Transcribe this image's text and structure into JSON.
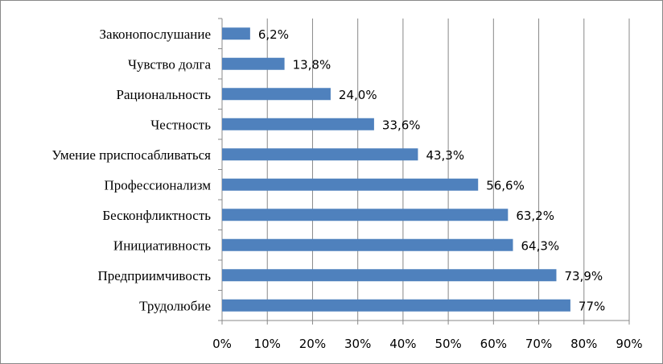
{
  "chart_data": {
    "type": "bar",
    "orientation": "horizontal",
    "title": "",
    "xlabel": "",
    "ylabel": "",
    "categories": [
      "Законопослушание",
      "Чувство долга",
      "Рациональность",
      "Честность",
      "Умение приспосабливаться",
      "Профессионализм",
      "Бесконфликтность",
      "Инициативность",
      "Предприимчивость",
      "Трудолюбие"
    ],
    "values": [
      6.2,
      13.8,
      24.0,
      33.6,
      43.3,
      56.6,
      63.2,
      64.3,
      73.9,
      77
    ],
    "value_labels": [
      "6,2%",
      "13,8%",
      "24,0%",
      "33,6%",
      "43,3%",
      "56,6%",
      "63,2%",
      "64,3%",
      "73,9%",
      "77%"
    ],
    "xlim": [
      0,
      90
    ],
    "x_ticks": [
      "0%",
      "10%",
      "20%",
      "30%",
      "40%",
      "50%",
      "60%",
      "70%",
      "80%",
      "90%"
    ],
    "grid": "vertical",
    "legend": "none",
    "bar_color": "#4F81BD"
  }
}
